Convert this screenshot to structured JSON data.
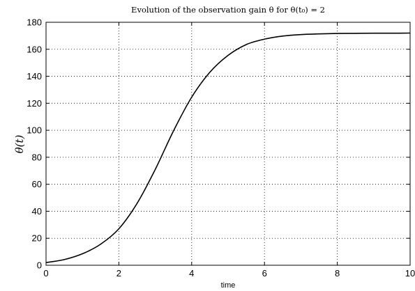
{
  "chart_data": {
    "type": "line",
    "title": "Evolution of the observation gain θ for θ(t₀) = 2",
    "xlabel": "time",
    "ylabel": "θ(t)",
    "xlim": [
      0,
      10
    ],
    "ylim": [
      0,
      180
    ],
    "xticks": [
      0,
      2,
      4,
      6,
      8,
      10
    ],
    "yticks": [
      0,
      20,
      40,
      60,
      80,
      100,
      120,
      140,
      160,
      180
    ],
    "grid": true,
    "series": [
      {
        "color": "#000000",
        "x": [
          0,
          0.5,
          1,
          1.5,
          2,
          2.5,
          3,
          3.5,
          4,
          4.5,
          5,
          5.5,
          6,
          6.5,
          7,
          7.5,
          8,
          8.5,
          9,
          9.5,
          10
        ],
        "y": [
          2,
          4.2,
          8.5,
          15.6,
          27,
          45.8,
          71,
          99.5,
          124.5,
          143,
          155.5,
          163.5,
          167.5,
          169.8,
          170.9,
          171.4,
          171.7,
          171.8,
          171.9,
          171.9,
          172
        ]
      }
    ]
  }
}
